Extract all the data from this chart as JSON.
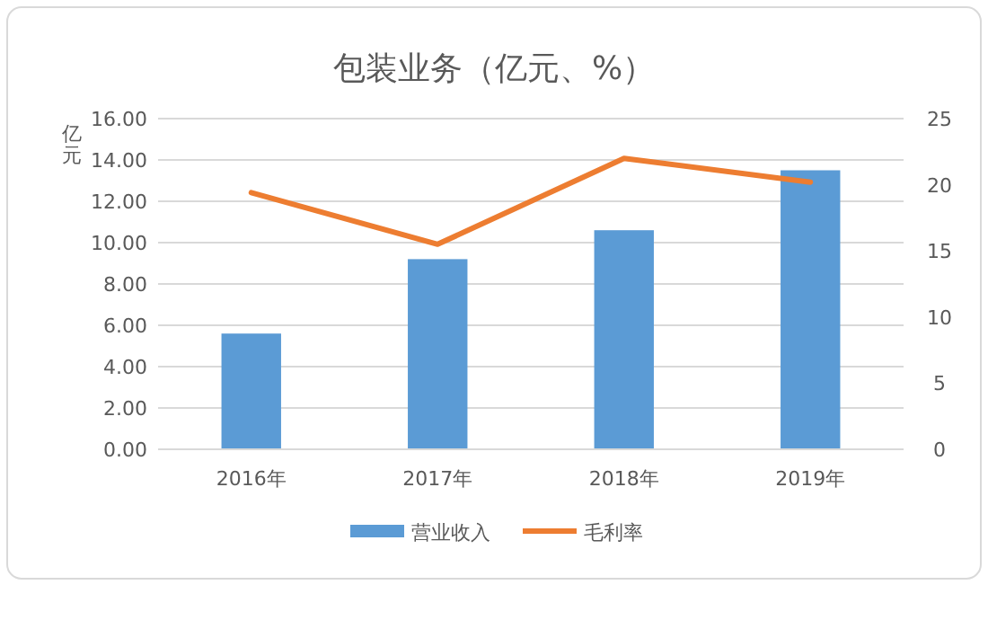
{
  "chart_data": {
    "type": "bar",
    "title": "包装业务（亿元、%）",
    "ylabel": "亿元",
    "categories": [
      "2016年",
      "2017年",
      "2018年",
      "2019年"
    ],
    "series": [
      {
        "name": "营业收入",
        "color": "#5b9bd5",
        "values": [
          5.6,
          9.2,
          10.6,
          13.5
        ]
      },
      {
        "name": "毛利率",
        "type": "line",
        "axis": "y2",
        "color": "#ed7d31",
        "values": [
          19.4,
          15.5,
          22.0,
          20.2
        ]
      }
    ],
    "ylim": [
      0,
      16
    ],
    "yticks": [
      {
        "value": 0,
        "label": "0.00"
      },
      {
        "value": 2,
        "label": "2.00"
      },
      {
        "value": 4,
        "label": "4.00"
      },
      {
        "value": 6,
        "label": "6.00"
      },
      {
        "value": 8,
        "label": "8.00"
      },
      {
        "value": 10,
        "label": "10.00"
      },
      {
        "value": 12,
        "label": "12.00"
      },
      {
        "value": 14,
        "label": "14.00"
      },
      {
        "value": 16,
        "label": "16.00"
      }
    ],
    "y2lim": [
      0,
      25
    ],
    "y2ticks": [
      0,
      5,
      10,
      15,
      20,
      25
    ],
    "grid": "y",
    "legend": "bottom",
    "marker": "none",
    "line_style": "solid"
  }
}
